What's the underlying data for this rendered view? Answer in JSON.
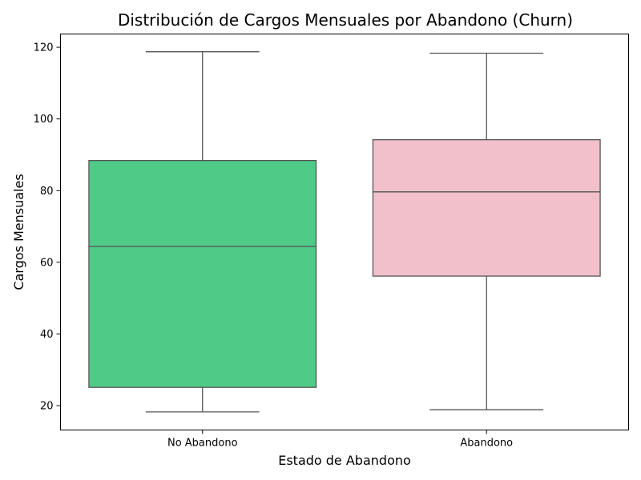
{
  "chart_data": {
    "type": "box",
    "title": "Distribución de Cargos Mensuales por Abandono (Churn)",
    "xlabel": "Estado de Abandono",
    "ylabel": "Cargos Mensuales",
    "ylim": [
      13.2,
      123.7
    ],
    "yticks": [
      20,
      40,
      60,
      80,
      100,
      120
    ],
    "categories": [
      "No Abandono",
      "Abandono"
    ],
    "boxes": [
      {
        "category": "No Abandono",
        "whisker_low": 18.25,
        "q1": 25.1,
        "median": 64.4,
        "q3": 88.4,
        "whisker_high": 118.75,
        "color": "#4fca87"
      },
      {
        "category": "Abandono",
        "whisker_low": 18.85,
        "q1": 56.15,
        "median": 79.65,
        "q3": 94.2,
        "whisker_high": 118.35,
        "color": "#f1c0ca"
      }
    ],
    "grid": false,
    "legend": "none",
    "colors": {
      "line": "#555555",
      "axis": "#000000"
    }
  }
}
